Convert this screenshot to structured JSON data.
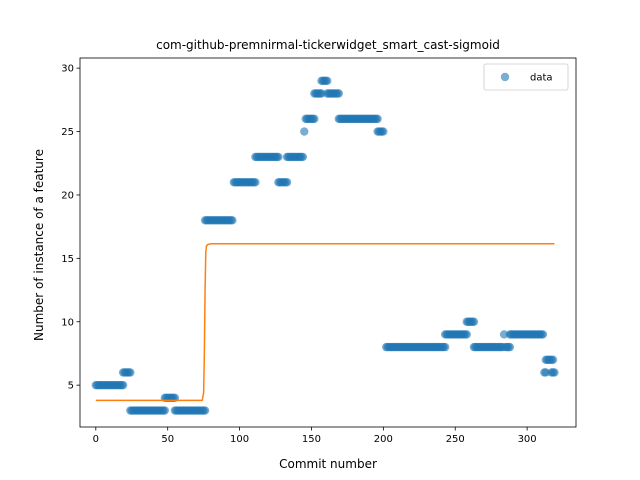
{
  "chart_data": {
    "type": "scatter",
    "title": "com-github-premnirmal-tickerwidget_smart_cast-sigmoid",
    "xlabel": "Commit number",
    "ylabel": "Number of instance of a feature",
    "xlim": [
      -11,
      334
    ],
    "ylim": [
      1.7,
      30.8
    ],
    "xticks": [
      0,
      50,
      100,
      150,
      200,
      250,
      300
    ],
    "yticks": [
      5,
      10,
      15,
      20,
      25,
      30
    ],
    "grid": false,
    "legend": {
      "position": "top-right",
      "entries": [
        "data"
      ]
    },
    "colors": {
      "points": "#1f77b4",
      "fit": "#ff7f0e"
    },
    "series": [
      {
        "name": "data",
        "kind": "scatter",
        "segments": [
          {
            "x_start": 0,
            "x_end": 19,
            "y": 5
          },
          {
            "x_start": 19,
            "x_end": 24,
            "y": 6
          },
          {
            "x_start": 24,
            "x_end": 48,
            "y": 3
          },
          {
            "x_start": 48,
            "x_end": 55,
            "y": 4
          },
          {
            "x_start": 55,
            "x_end": 76,
            "y": 3
          },
          {
            "x_start": 76,
            "x_end": 95,
            "y": 18
          },
          {
            "x_start": 96,
            "x_end": 111,
            "y": 21
          },
          {
            "x_start": 111,
            "x_end": 127,
            "y": 23
          },
          {
            "x_start": 127,
            "x_end": 133,
            "y": 21
          },
          {
            "x_start": 133,
            "x_end": 144,
            "y": 23
          },
          {
            "x_start": 145,
            "x_end": 145,
            "y": 25
          },
          {
            "x_start": 146,
            "x_end": 152,
            "y": 26
          },
          {
            "x_start": 152,
            "x_end": 157,
            "y": 28
          },
          {
            "x_start": 157,
            "x_end": 161,
            "y": 29
          },
          {
            "x_start": 161,
            "x_end": 169,
            "y": 28
          },
          {
            "x_start": 169,
            "x_end": 196,
            "y": 26
          },
          {
            "x_start": 196,
            "x_end": 200,
            "y": 25
          },
          {
            "x_start": 202,
            "x_end": 243,
            "y": 8
          },
          {
            "x_start": 243,
            "x_end": 258,
            "y": 9
          },
          {
            "x_start": 258,
            "x_end": 263,
            "y": 10
          },
          {
            "x_start": 263,
            "x_end": 283,
            "y": 8
          },
          {
            "x_start": 284,
            "x_end": 284,
            "y": 9
          },
          {
            "x_start": 285,
            "x_end": 288,
            "y": 8
          },
          {
            "x_start": 288,
            "x_end": 311,
            "y": 9
          },
          {
            "x_start": 312,
            "x_end": 313,
            "y": 6
          },
          {
            "x_start": 313,
            "x_end": 318,
            "y": 7
          },
          {
            "x_start": 317,
            "x_end": 319,
            "y": 6
          }
        ]
      },
      {
        "name": "",
        "kind": "line",
        "x": [
          0,
          74,
          75,
          75.5,
          76,
          76.5,
          77,
          78,
          80,
          319
        ],
        "y": [
          3.8,
          3.8,
          4.4,
          7.5,
          12.5,
          15.5,
          16.0,
          16.1,
          16.15,
          16.15
        ]
      }
    ]
  }
}
